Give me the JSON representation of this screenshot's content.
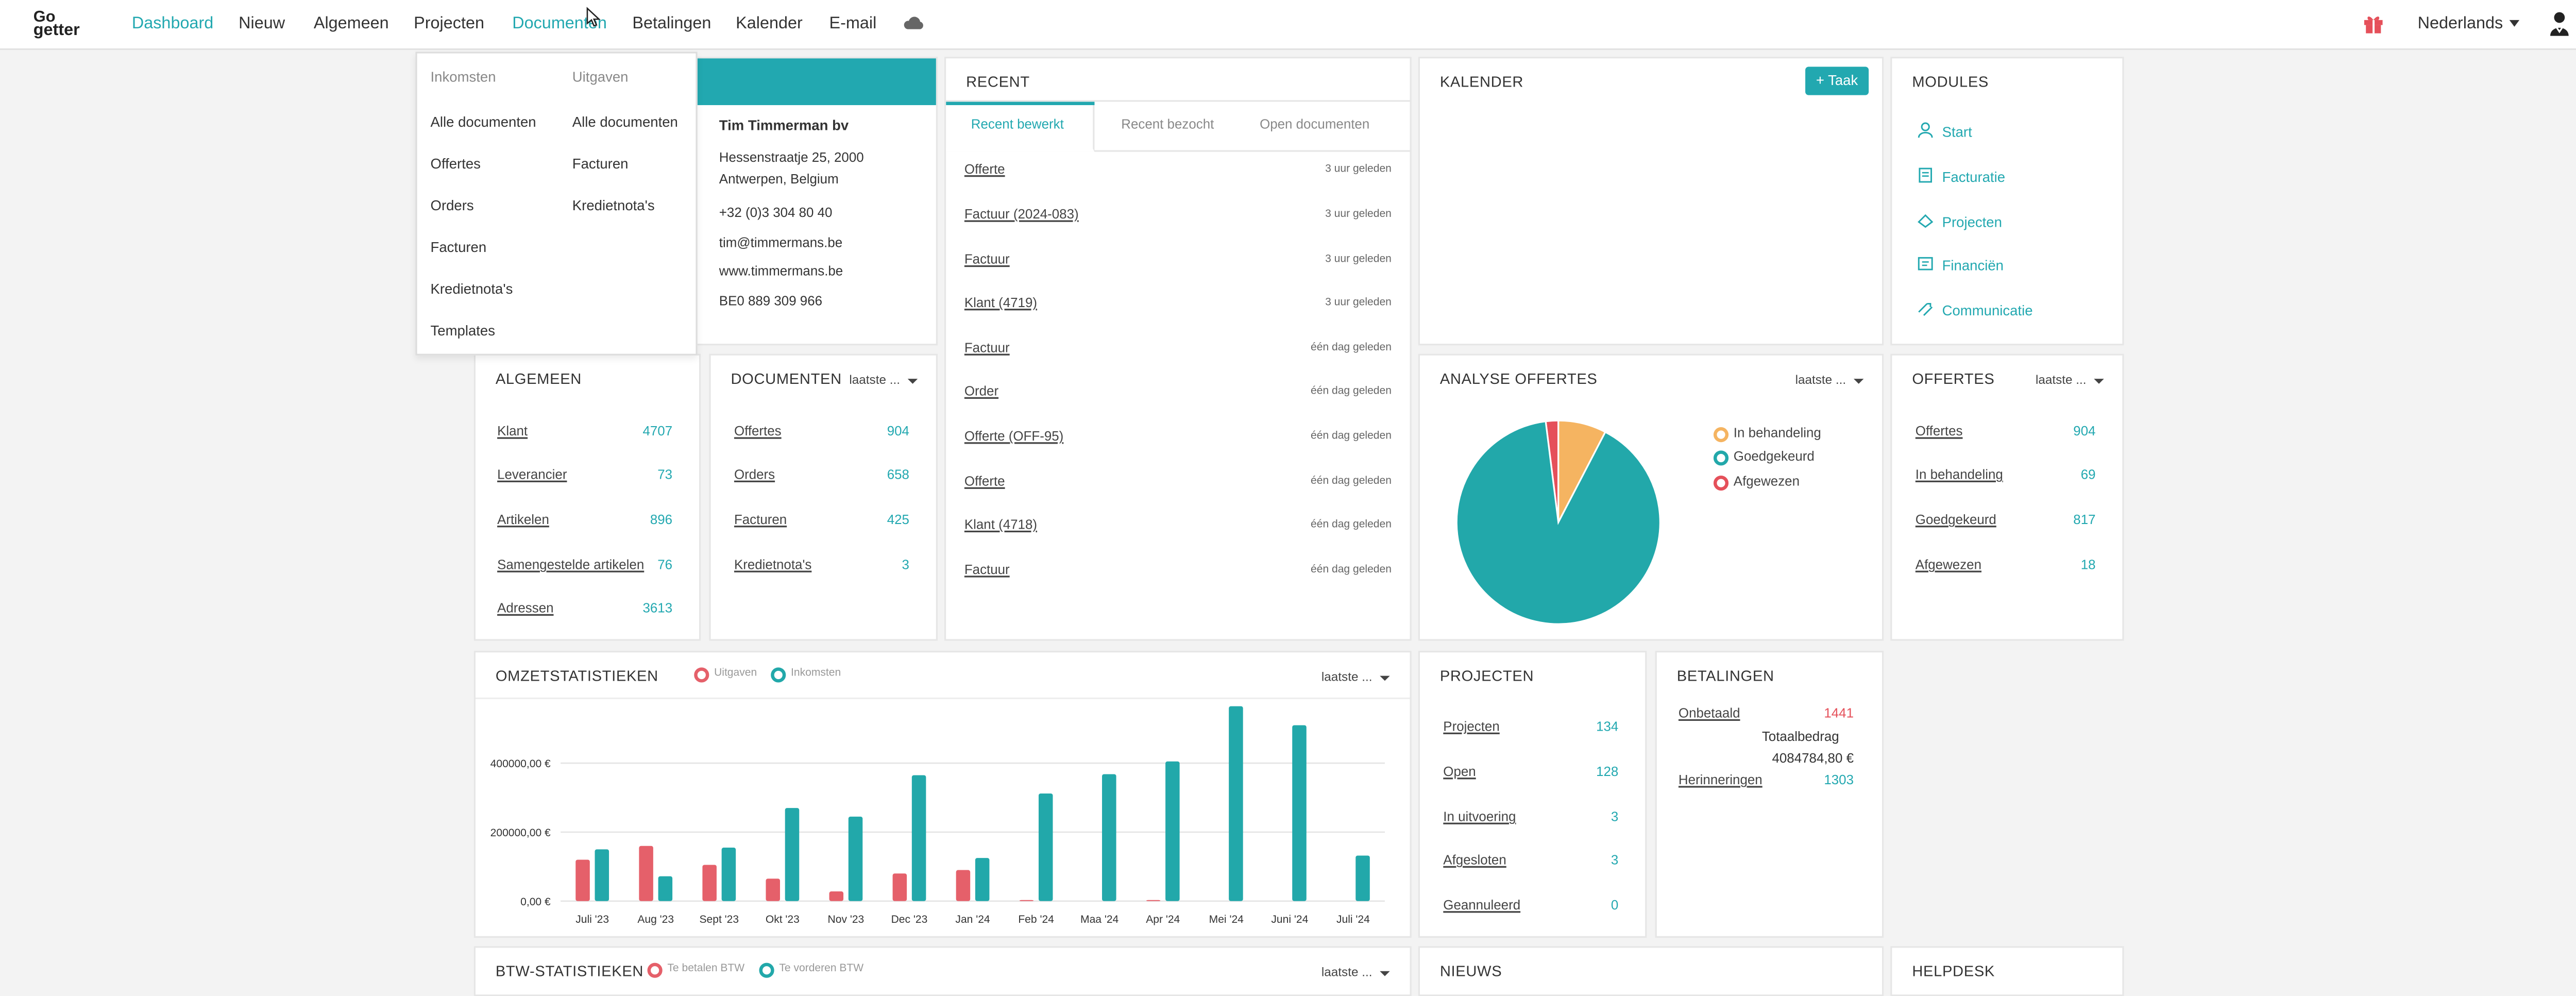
{
  "brand": {
    "line1": "Go",
    "line2": "getter"
  },
  "nav": {
    "dashboard": "Dashboard",
    "nieuw": "Nieuw",
    "algemeen": "Algemeen",
    "projecten": "Projecten",
    "documenten": "Documenten",
    "betalingen": "Betalingen",
    "kalender": "Kalender",
    "email": "E-mail",
    "cloud_icon": "cloud-icon",
    "gift_icon": "gift-icon",
    "user_icon": "user-icon",
    "language": "Nederlands"
  },
  "dropdown": {
    "inkomsten_header": "Inkomsten",
    "uitgaven_header": "Uitgaven",
    "inkomsten": [
      "Alle documenten",
      "Offertes",
      "Orders",
      "Facturen",
      "Kredietnota's",
      "Templates"
    ],
    "uitgaven": [
      "Alle documenten",
      "Facturen",
      "Kredietnota's"
    ]
  },
  "company": {
    "name": "Tim Timmerman bv",
    "address1": "Hessenstraatje 25, 2000",
    "address2": "Antwerpen, Belgium",
    "phone": "+32 (0)3 304 80 40",
    "email": "tim@timmermans.be",
    "web": "www.timmermans.be",
    "vat": "BE0 889 309 966"
  },
  "recent": {
    "title": "RECENT",
    "tabs": [
      "Recent bewerkt",
      "Recent bezocht",
      "Open documenten"
    ],
    "items": [
      {
        "label": "Offerte",
        "time": "3 uur geleden"
      },
      {
        "label": "Factuur (2024-083)",
        "time": "3 uur geleden"
      },
      {
        "label": "Factuur",
        "time": "3 uur geleden"
      },
      {
        "label": "Klant (4719)",
        "time": "3 uur geleden"
      },
      {
        "label": "Factuur",
        "time": "één dag geleden"
      },
      {
        "label": "Order",
        "time": "één dag geleden"
      },
      {
        "label": "Offerte (OFF-95)",
        "time": "één dag geleden"
      },
      {
        "label": "Offerte",
        "time": "één dag geleden"
      },
      {
        "label": "Klant (4718)",
        "time": "één dag geleden"
      },
      {
        "label": "Factuur",
        "time": "één dag geleden"
      }
    ]
  },
  "kalender": {
    "title": "KALENDER",
    "add_task": "+ Taak"
  },
  "modules": {
    "title": "MODULES",
    "items": [
      "Start",
      "Facturatie",
      "Projecten",
      "Financiën",
      "Communicatie"
    ]
  },
  "algemeen": {
    "title": "ALGEMEEN",
    "items": [
      {
        "label": "Klant",
        "value": "4707"
      },
      {
        "label": "Leverancier",
        "value": "73"
      },
      {
        "label": "Artikelen",
        "value": "896"
      },
      {
        "label": "Samengestelde artikelen",
        "value": "76"
      },
      {
        "label": "Adressen",
        "value": "3613"
      }
    ]
  },
  "documenten": {
    "title": "DOCUMENTEN",
    "filter": "laatste ...",
    "items": [
      {
        "label": "Offertes",
        "value": "904"
      },
      {
        "label": "Orders",
        "value": "658"
      },
      {
        "label": "Facturen",
        "value": "425"
      },
      {
        "label": "Kredietnota's",
        "value": "3"
      }
    ]
  },
  "analyse": {
    "title": "ANALYSE OFFERTES",
    "filter": "laatste ...",
    "legend": [
      {
        "label": "In behandeling",
        "color": "#f5b461"
      },
      {
        "label": "Goedgekeurd",
        "color": "#22a8aa"
      },
      {
        "label": "Afgewezen",
        "color": "#e5505a"
      }
    ],
    "colors": {
      "in_behandeling": "#f5b461",
      "goedgekeurd": "#22a8aa",
      "afgewezen": "#e5505a"
    }
  },
  "offertes": {
    "title": "OFFERTES",
    "filter": "laatste ...",
    "items": [
      {
        "label": "Offertes",
        "value": "904"
      },
      {
        "label": "In behandeling",
        "value": "69"
      },
      {
        "label": "Goedgekeurd",
        "value": "817"
      },
      {
        "label": "Afgewezen",
        "value": "18"
      }
    ]
  },
  "omzet": {
    "title": "OMZETSTATISTIEKEN",
    "filter": "laatste ...",
    "legend_out": "Uitgaven",
    "legend_in": "Inkomsten"
  },
  "projecten": {
    "title": "PROJECTEN",
    "items": [
      {
        "label": "Projecten",
        "value": "134"
      },
      {
        "label": "Open",
        "value": "128"
      },
      {
        "label": "In uitvoering",
        "value": "3"
      },
      {
        "label": "Afgesloten",
        "value": "3"
      },
      {
        "label": "Geannuleerd",
        "value": "0"
      }
    ]
  },
  "betalingen": {
    "title": "BETALINGEN",
    "onbetaald_label": "Onbetaald",
    "onbetaald_value": "1441",
    "totaal_label": "Totaalbedrag",
    "totaal_value": "4084784,80 €",
    "herinneringen_label": "Herinneringen",
    "herinneringen_value": "1303"
  },
  "btw": {
    "title": "BTW-STATISTIEKEN",
    "filter": "laatste ...",
    "legend_pay": "Te betalen BTW",
    "legend_claim": "Te vorderen BTW"
  },
  "nieuws": {
    "title": "NIEUWS"
  },
  "helpdesk": {
    "title": "HELPDESK"
  },
  "chart_data": [
    {
      "type": "bar",
      "title": "OMZETSTATISTIEKEN",
      "categories": [
        "Juli '23",
        "Aug '23",
        "Sept '23",
        "Okt '23",
        "Nov '23",
        "Dec '23",
        "Jan '24",
        "Feb '24",
        "Maa '24",
        "Apr '24",
        "Mei '24",
        "Juni '24",
        "Juli '24"
      ],
      "series": [
        {
          "name": "Uitgaven",
          "color": "#e5606a",
          "values": [
            120000,
            160000,
            105000,
            65000,
            28000,
            80000,
            90000,
            3000,
            0,
            3000,
            0,
            0,
            0
          ]
        },
        {
          "name": "Inkomsten",
          "color": "#22a8aa",
          "values": [
            150000,
            72000,
            155000,
            270000,
            245000,
            365000,
            125000,
            312000,
            368000,
            405000,
            565000,
            510000,
            132000
          ]
        }
      ],
      "ytick_labels": [
        "0,00 €",
        "200000,00 €",
        "400000,00 €"
      ],
      "ylim": [
        0,
        600000
      ],
      "grid": true,
      "legend": "top-left"
    },
    {
      "type": "pie",
      "title": "ANALYSE OFFERTES",
      "labels": [
        "In behandeling",
        "Goedgekeurd",
        "Afgewezen"
      ],
      "values": [
        69,
        817,
        18
      ],
      "colors": [
        "#f5b461",
        "#22a8aa",
        "#e5505a"
      ],
      "legend": "right"
    }
  ]
}
